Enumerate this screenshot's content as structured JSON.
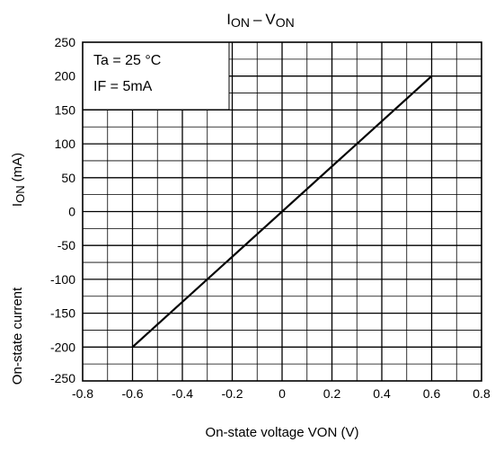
{
  "chart_data": {
    "type": "line",
    "title_main": "I",
    "title_sub1": "ON",
    "title_dash": "–",
    "title_v": "V",
    "title_sub2": "ON",
    "xlabel": "On-state voltage     VON (V)",
    "ylabel_prefix": "On-state current",
    "ylabel_symbol": "I",
    "ylabel_sub": "ON",
    "ylabel_unit": "(mA)",
    "xlim": [
      -0.8,
      0.8
    ],
    "ylim": [
      -250,
      250
    ],
    "x_ticks": [
      "-0.8",
      "-0.6",
      "-0.4",
      "-0.2",
      "0",
      "0.2",
      "0.4",
      "0.6",
      "0.8"
    ],
    "y_ticks": [
      "250",
      "200",
      "150",
      "100",
      "50",
      "0",
      "-50",
      "-100",
      "-150",
      "-200",
      "-250"
    ],
    "grid": true,
    "legend_position": "top-left",
    "annotation_lines": [
      "Ta = 25 °C",
      "IF = 5mA"
    ],
    "series": [
      {
        "x": [
          -0.6,
          0.6
        ],
        "y": [
          -200,
          200
        ]
      }
    ],
    "colors": {
      "line": "#000000",
      "grid": "#000000",
      "background": "#ffffff"
    }
  }
}
